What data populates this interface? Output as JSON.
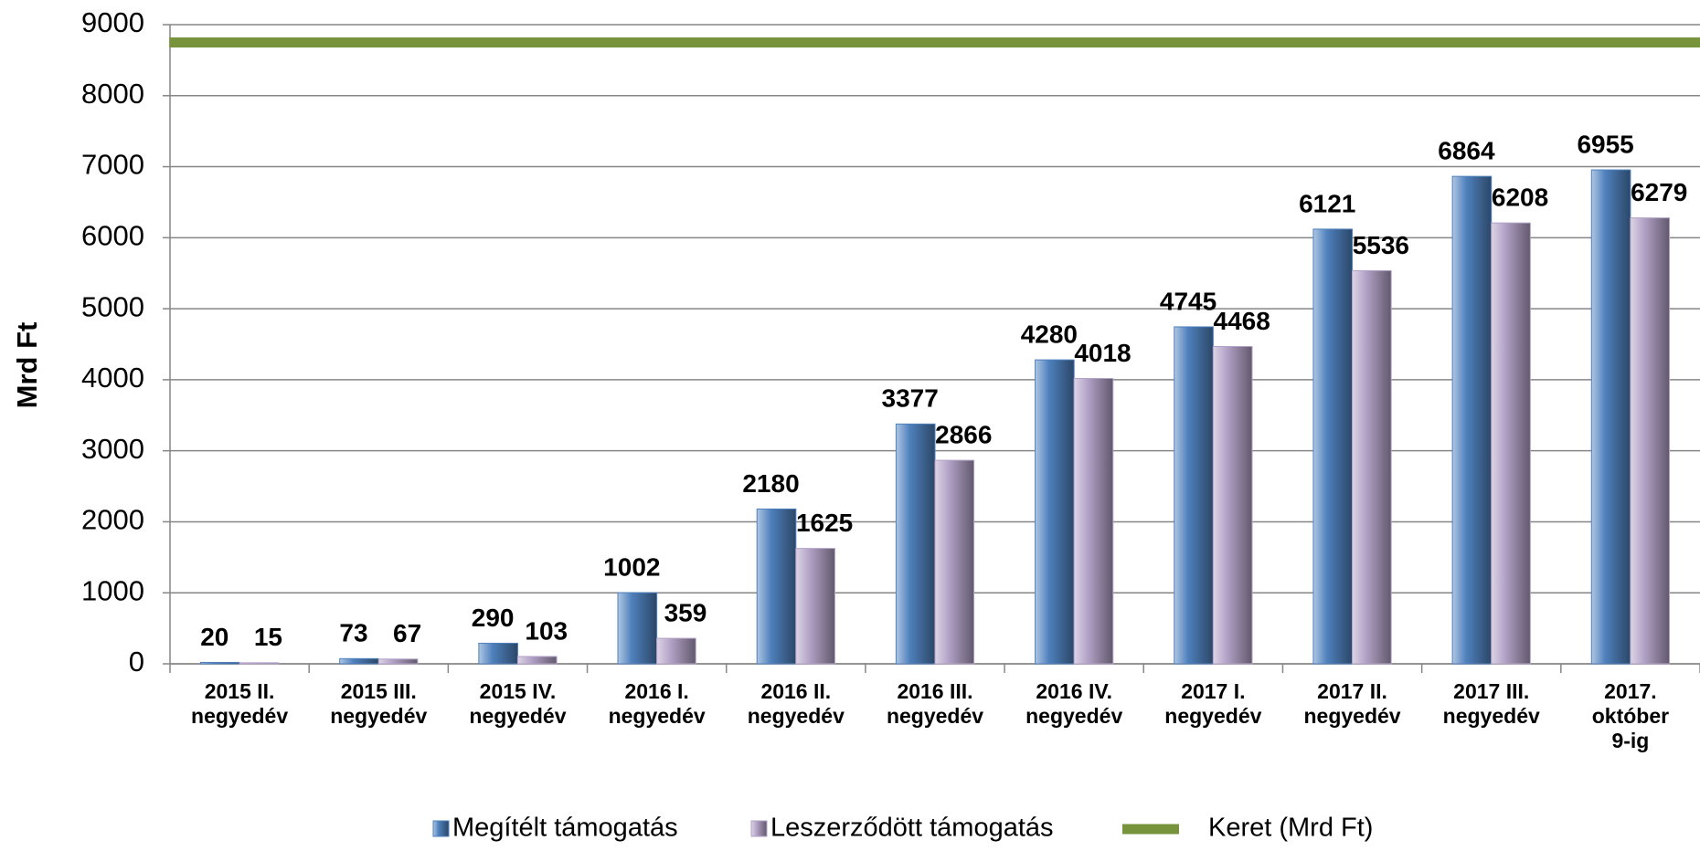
{
  "chart_data": {
    "type": "bar",
    "y_label": "Mrd Ft",
    "categories": [
      [
        "2015 II.",
        "negyedév"
      ],
      [
        "2015 III.",
        "negyedév"
      ],
      [
        "2015 IV.",
        "negyedév"
      ],
      [
        "2016 I.",
        "negyedév"
      ],
      [
        "2016 II.",
        "negyedév"
      ],
      [
        "2016 III.",
        "negyedév"
      ],
      [
        "2016 IV.",
        "negyedév"
      ],
      [
        "2017 I.",
        "negyedév"
      ],
      [
        "2017 II.",
        "negyedév"
      ],
      [
        "2017 III.",
        "negyedév"
      ],
      [
        "2017.",
        "október",
        "9-ig"
      ]
    ],
    "series": [
      {
        "name": "Megítélt támogatás",
        "type": "bar",
        "color": "#4f81bd",
        "values": [
          20,
          73,
          290,
          1002,
          2180,
          3377,
          4280,
          4745,
          6121,
          6864,
          6955
        ]
      },
      {
        "name": "Leszerződött támogatás",
        "type": "bar",
        "color": "#b3a2c7",
        "values": [
          15,
          67,
          103,
          359,
          1625,
          2866,
          4018,
          4468,
          5536,
          6208,
          6279
        ]
      },
      {
        "name": "Keret (Mrd Ft)",
        "type": "line",
        "color": "#77933c",
        "values": [
          8750,
          8750,
          8750,
          8750,
          8750,
          8750,
          8750,
          8750,
          8750,
          8750,
          8750
        ]
      }
    ],
    "ylim": [
      0,
      9000
    ],
    "yticks": [
      0,
      1000,
      2000,
      3000,
      4000,
      5000,
      6000,
      7000,
      8000,
      9000
    ],
    "grid": true,
    "legend": "bottom"
  }
}
